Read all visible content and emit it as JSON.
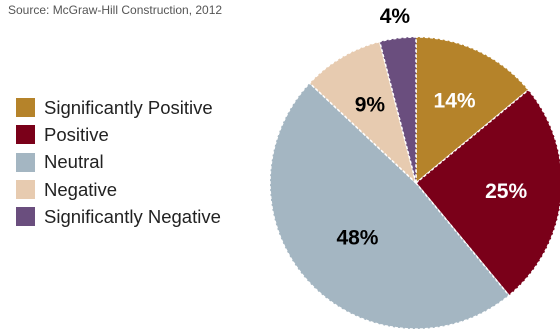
{
  "source": "Source: McGraw-Hill Construction, 2012",
  "chart_data": {
    "type": "pie",
    "title": "",
    "slices": [
      {
        "name": "Significantly Positive",
        "value": 14,
        "label": "14%",
        "color": "#b5832a",
        "label_color": "#ffffff"
      },
      {
        "name": "Positive",
        "value": 25,
        "label": "25%",
        "color": "#7a0019",
        "label_color": "#ffffff"
      },
      {
        "name": "Neutral",
        "value": 48,
        "label": "48%",
        "color": "#a4b6c2",
        "label_color": "#000000"
      },
      {
        "name": "Negative",
        "value": 9,
        "label": "9%",
        "color": "#e7cbb0",
        "label_color": "#000000"
      },
      {
        "name": "Significantly Negative",
        "value": 4,
        "label": "4%",
        "color": "#6a4e7e",
        "label_color": "#000000"
      }
    ],
    "start": "12 o'clock",
    "direction": "clockwise",
    "legend_position": "left"
  }
}
